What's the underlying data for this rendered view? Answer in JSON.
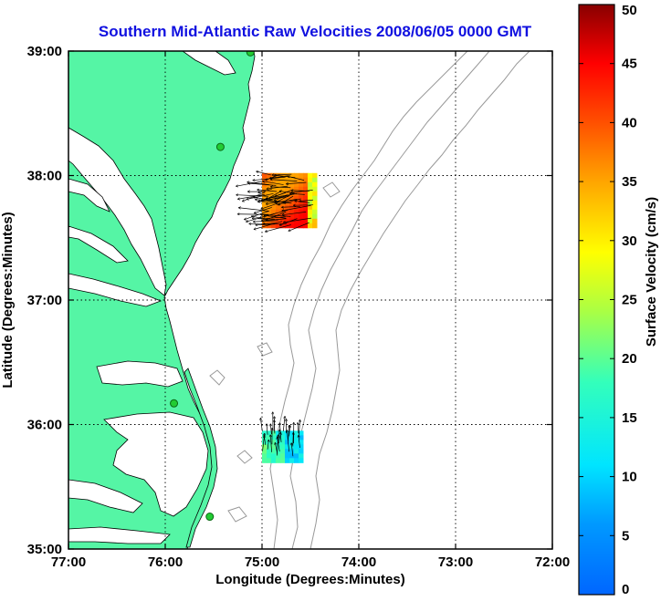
{
  "title": "Southern Mid-Atlantic Raw Velocities 2008/06/05 0000 GMT",
  "map": {
    "xlabel": "Longitude (Degrees:Minutes)",
    "ylabel": "Latitude (Degrees:Minutes)",
    "lon_range": [
      -77,
      -72
    ],
    "lat_range": [
      35,
      39
    ],
    "lon_ticks": [
      {
        "value": -77,
        "label": "77:00"
      },
      {
        "value": -76,
        "label": "76:00"
      },
      {
        "value": -75,
        "label": "75:00"
      },
      {
        "value": -74,
        "label": "74:00"
      },
      {
        "value": -73,
        "label": "73:00"
      },
      {
        "value": -72,
        "label": "72:00"
      }
    ],
    "lat_ticks": [
      {
        "value": 39,
        "label": "39:00"
      },
      {
        "value": 38,
        "label": "38:00"
      },
      {
        "value": 37,
        "label": "37:00"
      },
      {
        "value": 36,
        "label": "36:00"
      },
      {
        "value": 35,
        "label": "35:00"
      }
    ],
    "grid": "dotted",
    "land_color": "#55f5a5",
    "water_color": "#ffffff",
    "coastline_color": "#000000",
    "bathymetry_color": "#999999",
    "radar_stations": [
      {
        "lon": -75.12,
        "lat": 38.99
      },
      {
        "lon": -75.43,
        "lat": 38.23
      },
      {
        "lon": -75.91,
        "lat": 36.17
      },
      {
        "lon": -75.54,
        "lat": 35.26
      }
    ],
    "station_color": "#22cc33",
    "velocity_fields": [
      {
        "region": "north",
        "lon_range": [
          -75.0,
          -74.45
        ],
        "lat_range": [
          37.6,
          38.02
        ],
        "dominant_speed_cms": [
          35,
          45
        ],
        "arrow_direction": "west"
      },
      {
        "region": "south",
        "lon_range": [
          -75.0,
          -74.6
        ],
        "lat_range": [
          35.73,
          35.95
        ],
        "dominant_speed_cms": [
          10,
          20
        ],
        "arrow_direction": "north"
      }
    ]
  },
  "colorbar": {
    "label": "Surface Velocity (cm/s)",
    "min": 0,
    "max": 50,
    "ticks": [
      {
        "value": 50,
        "label": "50"
      },
      {
        "value": 45,
        "label": "45"
      },
      {
        "value": 40,
        "label": "40"
      },
      {
        "value": 35,
        "label": "35"
      },
      {
        "value": 30,
        "label": "30"
      },
      {
        "value": 25,
        "label": "25"
      },
      {
        "value": 20,
        "label": "20"
      },
      {
        "value": 15,
        "label": "15"
      },
      {
        "value": 10,
        "label": "10"
      },
      {
        "value": 5,
        "label": "5"
      },
      {
        "value": 0,
        "label": "0"
      }
    ],
    "colormap": "jet"
  }
}
